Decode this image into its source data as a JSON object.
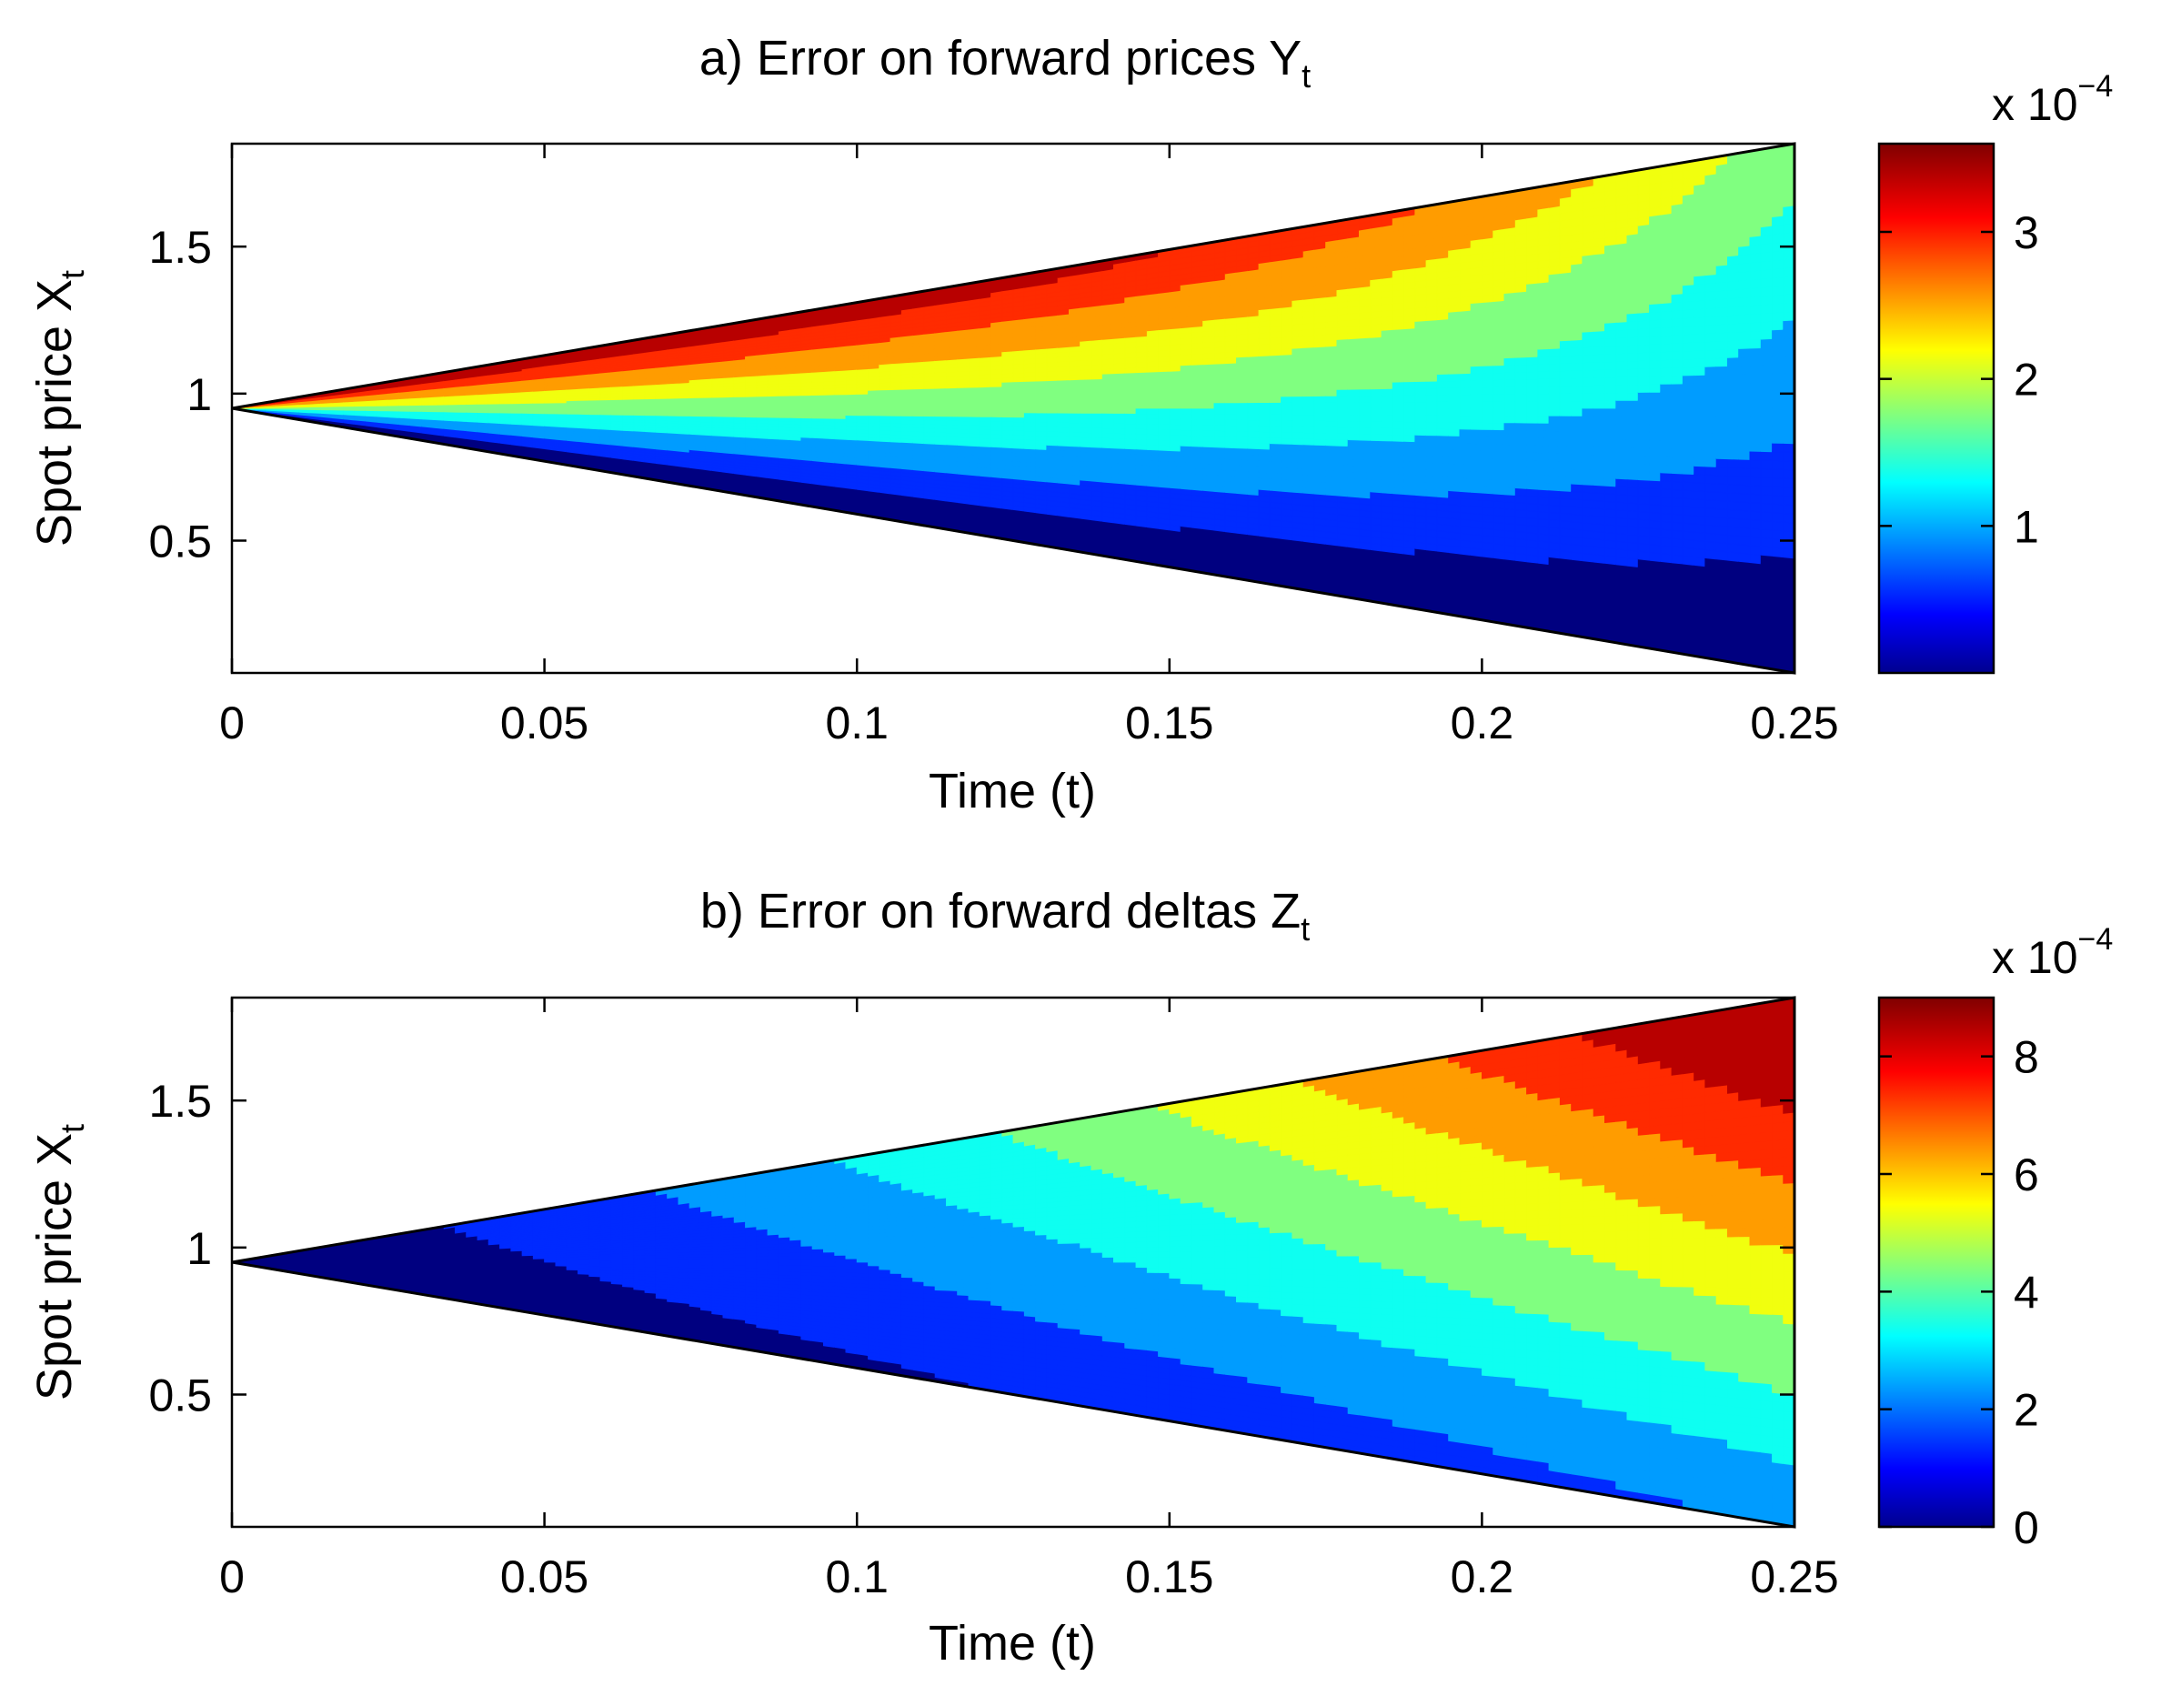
{
  "chart_data": [
    {
      "type": "heatmap",
      "plot": "contourf",
      "title": "a) Error on forward prices Y",
      "title_subscript": "t",
      "xlabel": "Time (t)",
      "ylabel": "Spot price X",
      "ylabel_subscript": "t",
      "xlim": [
        0,
        0.25
      ],
      "ylim": [
        0.05,
        1.85
      ],
      "xticks": [
        0,
        0.05,
        0.1,
        0.15,
        0.2,
        0.25
      ],
      "xtick_labels": [
        "0",
        "0.05",
        "0.1",
        "0.15",
        "0.2",
        "0.25"
      ],
      "yticks": [
        0.5,
        1,
        1.5
      ],
      "ytick_labels": [
        "0.5",
        "1",
        "1.5"
      ],
      "domain": "triangle from (0, 0.95) widening to [0.05, 1.85] at t = 0.25",
      "colormap": "jet",
      "colorbar": {
        "range": [
          0,
          3.6
        ],
        "ticks": [
          1,
          2,
          3
        ],
        "tick_labels": [
          "1",
          "2",
          "3"
        ],
        "scale_prefix": "x 10",
        "scale_exponent": "−4"
      },
      "contour_levels": [
        0.4,
        0.8,
        1.2,
        1.6,
        2.0,
        2.4,
        2.8,
        3.2
      ]
    },
    {
      "type": "heatmap",
      "plot": "contourf",
      "title": "b) Error on forward deltas Z",
      "title_subscript": "t",
      "xlabel": "Time (t)",
      "ylabel": "Spot price X",
      "ylabel_subscript": "t",
      "xlim": [
        0,
        0.25
      ],
      "ylim": [
        0.05,
        1.85
      ],
      "xticks": [
        0,
        0.05,
        0.1,
        0.15,
        0.2,
        0.25
      ],
      "xtick_labels": [
        "0",
        "0.05",
        "0.1",
        "0.15",
        "0.2",
        "0.25"
      ],
      "yticks": [
        0.5,
        1,
        1.5
      ],
      "ytick_labels": [
        "0.5",
        "1",
        "1.5"
      ],
      "domain": "triangle from (0, 0.95) widening to [0.05, 1.85] at t = 0.25",
      "colormap": "jet",
      "colorbar": {
        "range": [
          0,
          9
        ],
        "ticks": [
          0,
          2,
          4,
          6,
          8
        ],
        "tick_labels": [
          "0",
          "2",
          "4",
          "6",
          "8"
        ],
        "scale_prefix": "x 10",
        "scale_exponent": "−4"
      },
      "contour_levels": [
        1,
        2,
        3,
        4,
        5,
        6,
        7,
        8
      ]
    }
  ]
}
